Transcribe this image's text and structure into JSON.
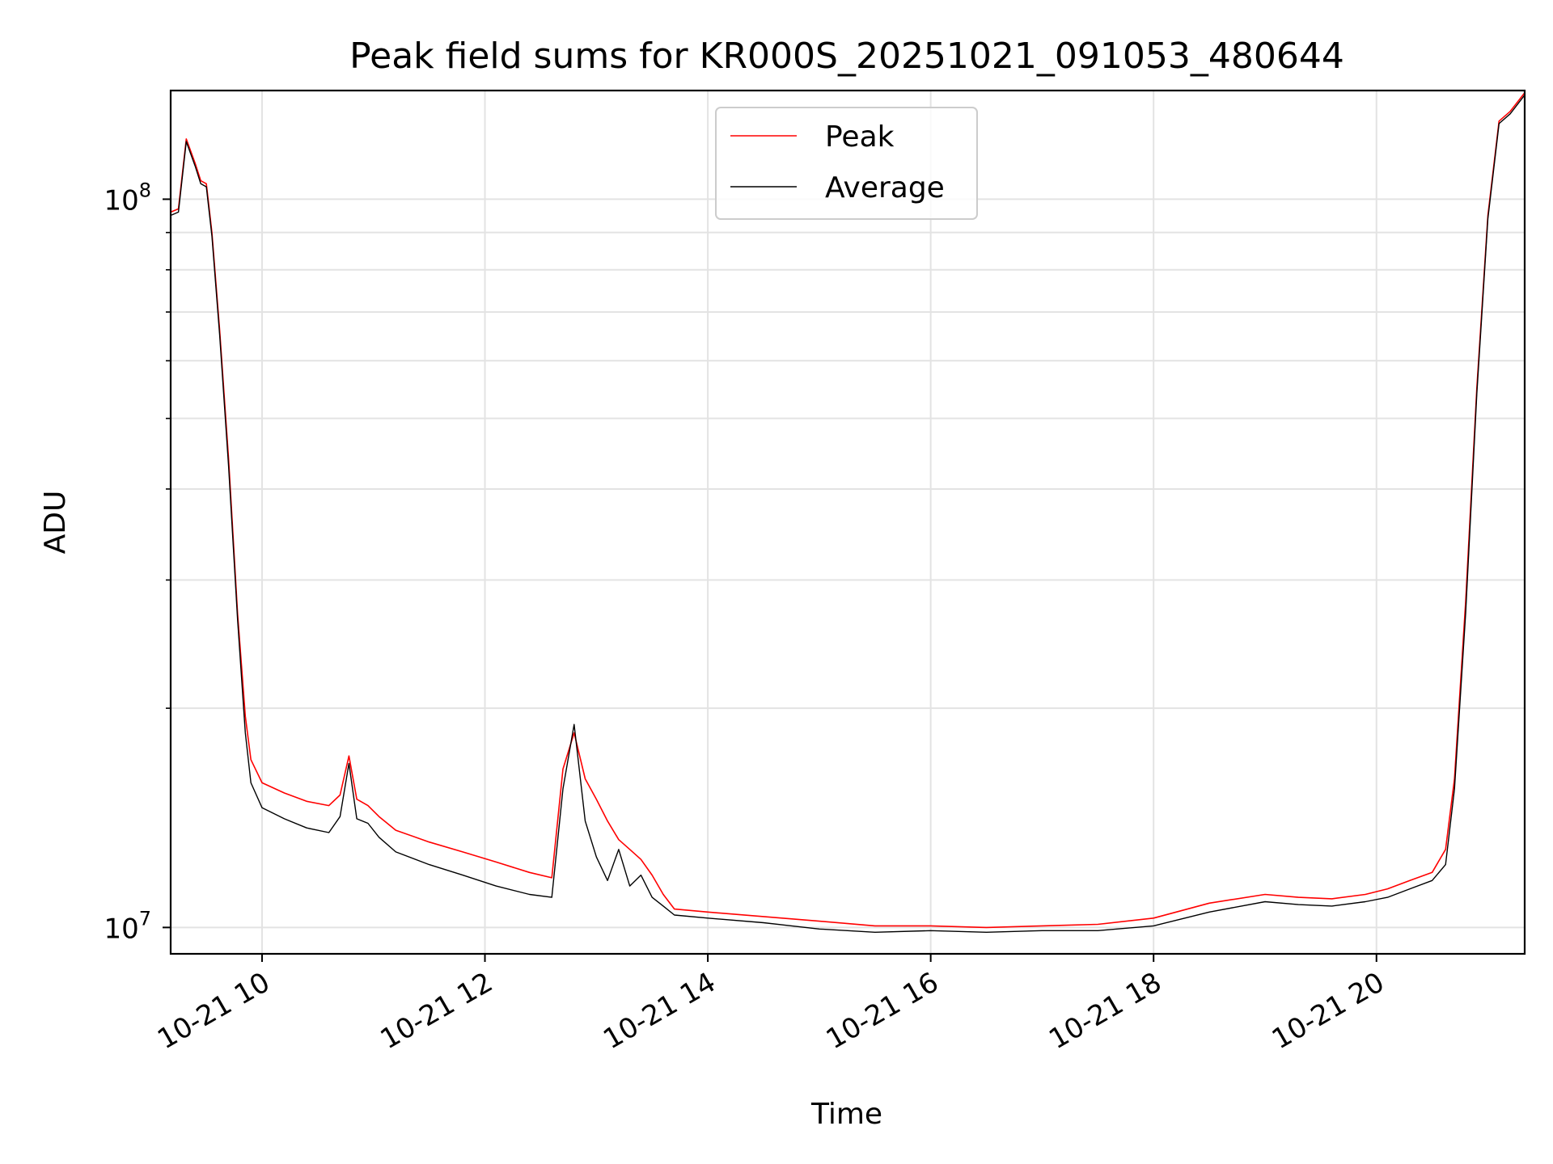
{
  "chart_data": {
    "type": "line",
    "title": "Peak field sums for KR000S_20251021_091053_480644",
    "xlabel": "Time",
    "ylabel": "ADU",
    "yscale": "log",
    "xlim_hours": [
      9.18,
      21.33
    ],
    "ylim": [
      9200000,
      141000000
    ],
    "grid": true,
    "legend_position": "upper-center",
    "x_ticks": [
      {
        "value": 10,
        "label": "10-21 10"
      },
      {
        "value": 12,
        "label": "10-21 12"
      },
      {
        "value": 14,
        "label": "10-21 14"
      },
      {
        "value": 16,
        "label": "10-21 16"
      },
      {
        "value": 18,
        "label": "10-21 18"
      },
      {
        "value": 20,
        "label": "10-21 20"
      }
    ],
    "y_ticks": [
      {
        "value": 10000000,
        "base": "10",
        "exp": "7"
      },
      {
        "value": 100000000,
        "base": "10",
        "exp": "8"
      }
    ],
    "x": [
      9.18,
      9.25,
      9.32,
      9.4,
      9.45,
      9.5,
      9.55,
      9.62,
      9.7,
      9.78,
      9.85,
      9.9,
      10.0,
      10.2,
      10.4,
      10.6,
      10.7,
      10.78,
      10.85,
      10.95,
      11.05,
      11.2,
      11.5,
      11.8,
      12.1,
      12.4,
      12.6,
      12.7,
      12.8,
      12.9,
      13.0,
      13.1,
      13.2,
      13.3,
      13.4,
      13.5,
      13.6,
      13.7,
      14.0,
      14.5,
      15.0,
      15.5,
      16.0,
      16.5,
      17.0,
      17.5,
      18.0,
      18.5,
      19.0,
      19.3,
      19.6,
      19.9,
      20.1,
      20.3,
      20.5,
      20.62,
      20.7,
      20.8,
      20.9,
      21.0,
      21.1,
      21.2,
      21.33
    ],
    "series": [
      {
        "name": "Peak",
        "color": "#ff0000",
        "values": [
          96000000,
          97000000,
          121000000,
          112000000,
          106000000,
          105000000,
          90000000,
          66000000,
          44000000,
          27000000,
          19500000,
          17000000,
          15800000,
          15300000,
          14900000,
          14700000,
          15200000,
          17200000,
          15000000,
          14700000,
          14200000,
          13600000,
          13100000,
          12700000,
          12300000,
          11900000,
          11700000,
          16500000,
          18500000,
          16000000,
          15000000,
          14000000,
          13200000,
          12800000,
          12400000,
          11800000,
          11100000,
          10600000,
          10500000,
          10350000,
          10200000,
          10050000,
          10050000,
          10000000,
          10050000,
          10100000,
          10300000,
          10800000,
          11100000,
          11000000,
          10950000,
          11100000,
          11300000,
          11600000,
          11900000,
          12800000,
          16000000,
          28000000,
          55000000,
          95000000,
          128000000,
          132000000,
          140000000
        ]
      },
      {
        "name": "Average",
        "color": "#000000",
        "values": [
          95000000,
          96000000,
          120000000,
          111000000,
          105000000,
          104000000,
          89000000,
          65000000,
          43000000,
          26500000,
          18500000,
          15800000,
          14600000,
          14100000,
          13700000,
          13500000,
          14200000,
          16800000,
          14100000,
          13900000,
          13300000,
          12700000,
          12200000,
          11800000,
          11400000,
          11100000,
          11000000,
          15500000,
          19000000,
          14000000,
          12500000,
          11600000,
          12800000,
          11400000,
          11800000,
          11000000,
          10700000,
          10400000,
          10300000,
          10150000,
          9950000,
          9850000,
          9900000,
          9850000,
          9900000,
          9900000,
          10050000,
          10500000,
          10850000,
          10750000,
          10700000,
          10850000,
          11000000,
          11300000,
          11600000,
          12200000,
          15500000,
          27000000,
          54000000,
          94000000,
          127000000,
          131000000,
          139000000
        ]
      }
    ]
  }
}
